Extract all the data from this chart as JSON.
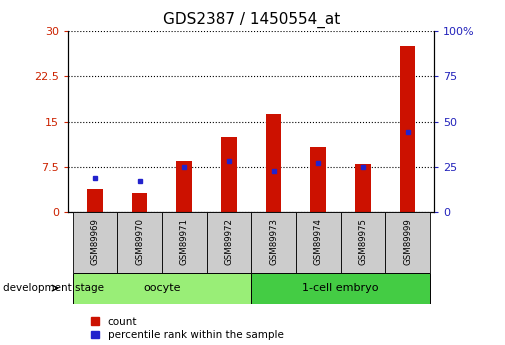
{
  "title": "GDS2387 / 1450554_at",
  "samples": [
    "GSM89969",
    "GSM89970",
    "GSM89971",
    "GSM89972",
    "GSM89973",
    "GSM89974",
    "GSM89975",
    "GSM89999"
  ],
  "count_values": [
    3.8,
    3.2,
    8.5,
    12.5,
    16.2,
    10.8,
    8.0,
    27.5
  ],
  "percentile_values": [
    19.0,
    17.0,
    25.0,
    28.0,
    23.0,
    27.0,
    25.0,
    44.0
  ],
  "groups": [
    {
      "label": "oocyte",
      "start": 0,
      "end": 4,
      "color": "#99ee77"
    },
    {
      "label": "1-cell embryo",
      "start": 4,
      "end": 8,
      "color": "#44cc44"
    }
  ],
  "left_ylim": [
    0,
    30
  ],
  "right_ylim": [
    0,
    100
  ],
  "left_yticks": [
    0,
    7.5,
    15,
    22.5,
    30
  ],
  "right_yticks": [
    0,
    25,
    50,
    75,
    100
  ],
  "bar_color": "#cc1100",
  "percentile_color": "#2222cc",
  "bar_width": 0.35,
  "background_color": "#ffffff",
  "plot_bg_color": "#ffffff",
  "left_tick_color": "#cc2200",
  "right_tick_color": "#2222bb",
  "legend_count_label": "count",
  "legend_percentile_label": "percentile rank within the sample",
  "stage_label": "development stage",
  "label_box_color": "#cccccc",
  "tick_label_fontsize": 8,
  "title_fontsize": 11
}
